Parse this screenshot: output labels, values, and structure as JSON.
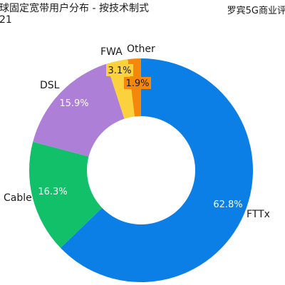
{
  "header": {
    "title": "球固定宽带用户分布 - 按技术制式",
    "year": "21",
    "source": "罗宾5G商业评"
  },
  "chart_data": {
    "type": "pie",
    "title": "球固定宽带用户分布 - 按技术制式",
    "subtitle": "21",
    "donut": true,
    "categories": [
      "FTTx",
      "Cable",
      "DSL",
      "FWA",
      "Other"
    ],
    "values": [
      62.8,
      16.3,
      15.9,
      3.1,
      1.9
    ],
    "value_labels": [
      "62.8%",
      "16.3%",
      "15.9%",
      "3.1%",
      "1.9%"
    ],
    "colors": [
      "#0b7fe6",
      "#12c06a",
      "#ad7fd6",
      "#fbd13e",
      "#f5870b"
    ],
    "legend": "none"
  }
}
